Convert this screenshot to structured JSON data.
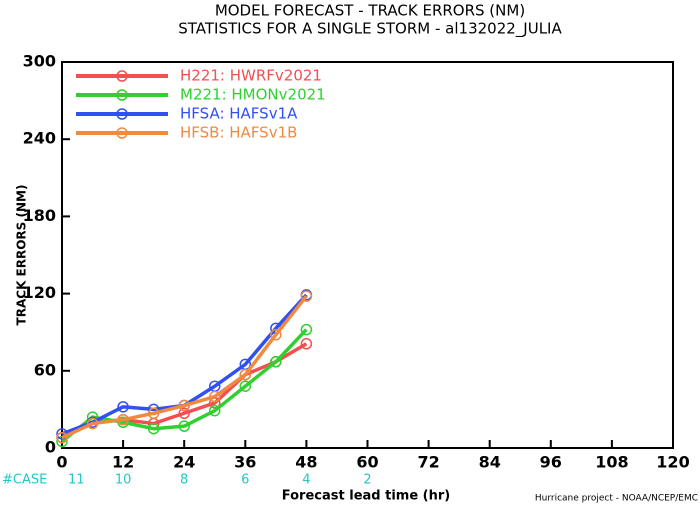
{
  "chart_data": {
    "type": "line",
    "title": "MODEL FORECAST - TRACK ERRORS (NM)",
    "subtitle": "STATISTICS FOR A SINGLE STORM - al132022_JULIA",
    "x_label": "Forecast lead time (hr)",
    "y_label": "TRACK ERRORS (NM)",
    "footer": "Hurricane project - NOAA/NCEP/EMC",
    "x": [
      0,
      6,
      12,
      18,
      24,
      30,
      36,
      42,
      48
    ],
    "series": [
      {
        "name": "H221: HWRFv2021",
        "color": "#f05050",
        "values": [
          8,
          20,
          22,
          19,
          27,
          35,
          57,
          67,
          81
        ]
      },
      {
        "name": "M221: HMONv2021",
        "color": "#30d030",
        "values": [
          5,
          24,
          20,
          15,
          17,
          29,
          48,
          67,
          92
        ]
      },
      {
        "name": "HFSA: HAFSv1A",
        "color": "#3050f0",
        "values": [
          11,
          20,
          32,
          30,
          33,
          48,
          65,
          93,
          119
        ]
      },
      {
        "name": "HFSB: HAFSv1B",
        "color": "#f08a40",
        "values": [
          8,
          19,
          22,
          27,
          33,
          40,
          57,
          88,
          118
        ]
      }
    ],
    "xlim": [
      0,
      120
    ],
    "xticks": [
      0,
      12,
      24,
      36,
      48,
      60,
      72,
      84,
      96,
      108,
      120
    ],
    "ylim": [
      0,
      300
    ],
    "yticks": [
      0,
      60,
      120,
      180,
      240,
      300
    ],
    "case_label": "#CASE",
    "cases": [
      11,
      10,
      8,
      6,
      4,
      2
    ],
    "case_color": "#20c8c8",
    "legend": "upper-left"
  }
}
